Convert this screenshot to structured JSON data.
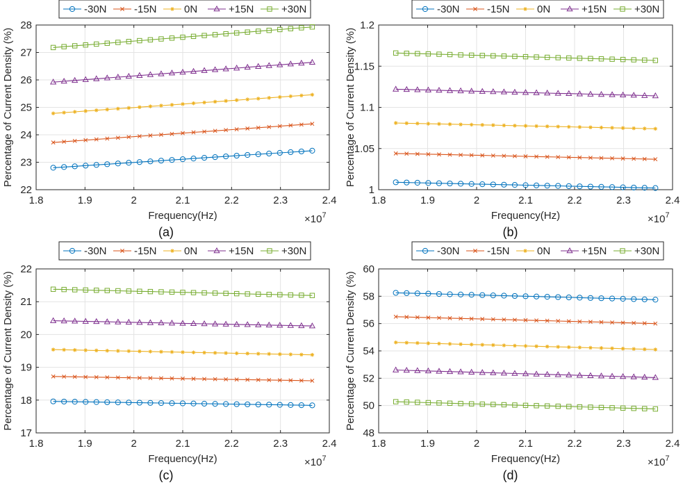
{
  "chart_data": [
    {
      "type": "line",
      "panel_label": "(a)",
      "xlabel": "Frequency(Hz)",
      "ylabel": "Percentage of Current Density (%)",
      "x_exponent_label": "×10",
      "x_exponent_power": "7",
      "xlim": [
        1.8,
        2.4
      ],
      "ylim": [
        22,
        28
      ],
      "xticks": [
        "1.8",
        "1.9",
        "2",
        "2.1",
        "2.2",
        "2.3",
        "2.4"
      ],
      "yticks": [
        "22",
        "23",
        "24",
        "25",
        "26",
        "27",
        "28"
      ],
      "x_start": 1.835,
      "x_end": 2.365,
      "num_points": 25,
      "grid": true,
      "legend_position": "top",
      "series": [
        {
          "name": "-30N",
          "marker": "circle",
          "color": "#0072BD",
          "start": 22.8,
          "end": 23.42
        },
        {
          "name": "-15N",
          "marker": "x",
          "color": "#D95319",
          "start": 23.72,
          "end": 24.4
        },
        {
          "name": "0N",
          "marker": "star",
          "color": "#EDB120",
          "start": 24.78,
          "end": 25.46
        },
        {
          "name": "+15N",
          "marker": "triangle",
          "color": "#7E2F8E",
          "start": 25.92,
          "end": 26.64
        },
        {
          "name": "+30N",
          "marker": "square",
          "color": "#77AC30",
          "start": 27.18,
          "end": 27.93
        }
      ]
    },
    {
      "type": "line",
      "panel_label": "(b)",
      "xlabel": "Frequency(Hz)",
      "ylabel": "Percentage of Current Density (%)",
      "x_exponent_label": "×10",
      "x_exponent_power": "7",
      "xlim": [
        1.8,
        2.4
      ],
      "ylim": [
        1.0,
        1.2
      ],
      "xticks": [
        "1.8",
        "1.9",
        "2",
        "2.1",
        "2.2",
        "2.3",
        "2.4"
      ],
      "yticks": [
        "1",
        "1.05",
        "1.1",
        "1.15",
        "1.2"
      ],
      "x_start": 1.835,
      "x_end": 2.365,
      "num_points": 25,
      "grid": true,
      "legend_position": "top",
      "series": [
        {
          "name": "-30N",
          "marker": "circle",
          "color": "#0072BD",
          "start": 1.009,
          "end": 1.002
        },
        {
          "name": "-15N",
          "marker": "x",
          "color": "#D95319",
          "start": 1.044,
          "end": 1.037
        },
        {
          "name": "0N",
          "marker": "star",
          "color": "#EDB120",
          "start": 1.081,
          "end": 1.074
        },
        {
          "name": "+15N",
          "marker": "triangle",
          "color": "#7E2F8E",
          "start": 1.122,
          "end": 1.114
        },
        {
          "name": "+30N",
          "marker": "square",
          "color": "#77AC30",
          "start": 1.166,
          "end": 1.157
        }
      ]
    },
    {
      "type": "line",
      "panel_label": "(c)",
      "xlabel": "Frequency(Hz)",
      "ylabel": "Percentage of Current Density (%)",
      "x_exponent_label": "×10",
      "x_exponent_power": "7",
      "xlim": [
        1.8,
        2.4
      ],
      "ylim": [
        17,
        22
      ],
      "xticks": [
        "1.8",
        "1.9",
        "2",
        "2.1",
        "2.2",
        "2.3",
        "2.4"
      ],
      "yticks": [
        "17",
        "18",
        "19",
        "20",
        "21",
        "22"
      ],
      "x_start": 1.835,
      "x_end": 2.365,
      "num_points": 25,
      "grid": true,
      "legend_position": "top",
      "series": [
        {
          "name": "-30N",
          "marker": "circle",
          "color": "#0072BD",
          "start": 17.96,
          "end": 17.84
        },
        {
          "name": "-15N",
          "marker": "x",
          "color": "#D95319",
          "start": 18.72,
          "end": 18.59
        },
        {
          "name": "0N",
          "marker": "star",
          "color": "#EDB120",
          "start": 19.54,
          "end": 19.38
        },
        {
          "name": "+15N",
          "marker": "triangle",
          "color": "#7E2F8E",
          "start": 20.42,
          "end": 20.26
        },
        {
          "name": "+30N",
          "marker": "square",
          "color": "#77AC30",
          "start": 21.38,
          "end": 21.19
        }
      ]
    },
    {
      "type": "line",
      "panel_label": "(d)",
      "xlabel": "Frequency(Hz)",
      "ylabel": "Percentage of Current Density (%)",
      "x_exponent_label": "×10",
      "x_exponent_power": "7",
      "xlim": [
        1.8,
        2.4
      ],
      "ylim": [
        48,
        60
      ],
      "xticks": [
        "1.8",
        "1.9",
        "2",
        "2.1",
        "2.2",
        "2.3",
        "2.4"
      ],
      "yticks": [
        "48",
        "50",
        "52",
        "54",
        "56",
        "58",
        "60"
      ],
      "x_start": 1.835,
      "x_end": 2.365,
      "num_points": 25,
      "grid": true,
      "legend_position": "top",
      "series": [
        {
          "name": "-30N",
          "marker": "circle",
          "color": "#0072BD",
          "start": 58.25,
          "end": 57.75
        },
        {
          "name": "-15N",
          "marker": "x",
          "color": "#D95319",
          "start": 56.5,
          "end": 56.0
        },
        {
          "name": "0N",
          "marker": "star",
          "color": "#EDB120",
          "start": 54.62,
          "end": 54.1
        },
        {
          "name": "+15N",
          "marker": "triangle",
          "color": "#7E2F8E",
          "start": 52.6,
          "end": 52.05
        },
        {
          "name": "+30N",
          "marker": "square",
          "color": "#77AC30",
          "start": 50.28,
          "end": 49.75
        }
      ]
    }
  ]
}
